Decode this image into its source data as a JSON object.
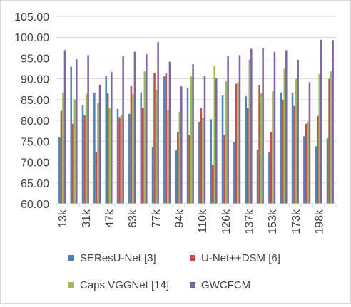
{
  "chart_data": {
    "type": "bar",
    "ylim": [
      60,
      105
    ],
    "yticks": [
      "60.00",
      "65.00",
      "70.00",
      "75.00",
      "80.00",
      "85.00",
      "90.00",
      "95.00",
      "100.00",
      "105.00"
    ],
    "categories": [
      "13k",
      "",
      "31k",
      "",
      "47k",
      "",
      "63k",
      "",
      "77k",
      "",
      "94k",
      "",
      "110k",
      "",
      "126k",
      "",
      "137k",
      "",
      "153k",
      "",
      "173k",
      "",
      "198k",
      ""
    ],
    "xlabels": [
      "13k",
      "31k",
      "47k",
      "63k",
      "77k",
      "94k",
      "110k",
      "126k",
      "137k",
      "153k",
      "173k",
      "198k"
    ],
    "grid": true,
    "legend_position": "bottom",
    "series": [
      {
        "name": "SEResU-Net [3]",
        "color": "#4e81bd",
        "values": [
          75.9,
          92.9,
          83.7,
          86.7,
          90.8,
          82.8,
          81.6,
          86.7,
          73.5,
          90.6,
          72.8,
          87.9,
          79.7,
          80.3,
          86.0,
          74.7,
          85.8,
          73.0,
          72.3,
          86.7,
          86.7,
          76.2,
          73.8,
          75.7
        ]
      },
      {
        "name": "U-Net++DSM [6]",
        "color": "#c0504d",
        "values": [
          82.3,
          79.2,
          81.2,
          72.4,
          86.5,
          80.8,
          88.2,
          83.0,
          91.4,
          91.3,
          77.1,
          76.6,
          82.9,
          69.4,
          76.5,
          88.8,
          83.1,
          88.4,
          77.2,
          84.8,
          83.5,
          79.2,
          81.1,
          90.0
        ]
      },
      {
        "name": "Caps VGGNet [14]",
        "color": "#9bbb59",
        "values": [
          86.7,
          85.1,
          86.4,
          84.2,
          82.9,
          81.4,
          86.4,
          91.8,
          87.4,
          82.4,
          82.1,
          90.6,
          80.6,
          93.1,
          89.4,
          89.2,
          94.6,
          86.6,
          87.0,
          92.4,
          90.0,
          79.7,
          91.2,
          91.8
        ]
      },
      {
        "name": "GWCFCM",
        "color": "#8064a2",
        "values": [
          96.9,
          94.7,
          95.7,
          88.6,
          91.7,
          95.4,
          96.5,
          95.9,
          98.8,
          94.1,
          88.2,
          93.5,
          90.8,
          90.1,
          95.5,
          95.7,
          97.2,
          97.3,
          96.5,
          96.9,
          94.6,
          89.2,
          99.4,
          99.3
        ]
      }
    ]
  }
}
